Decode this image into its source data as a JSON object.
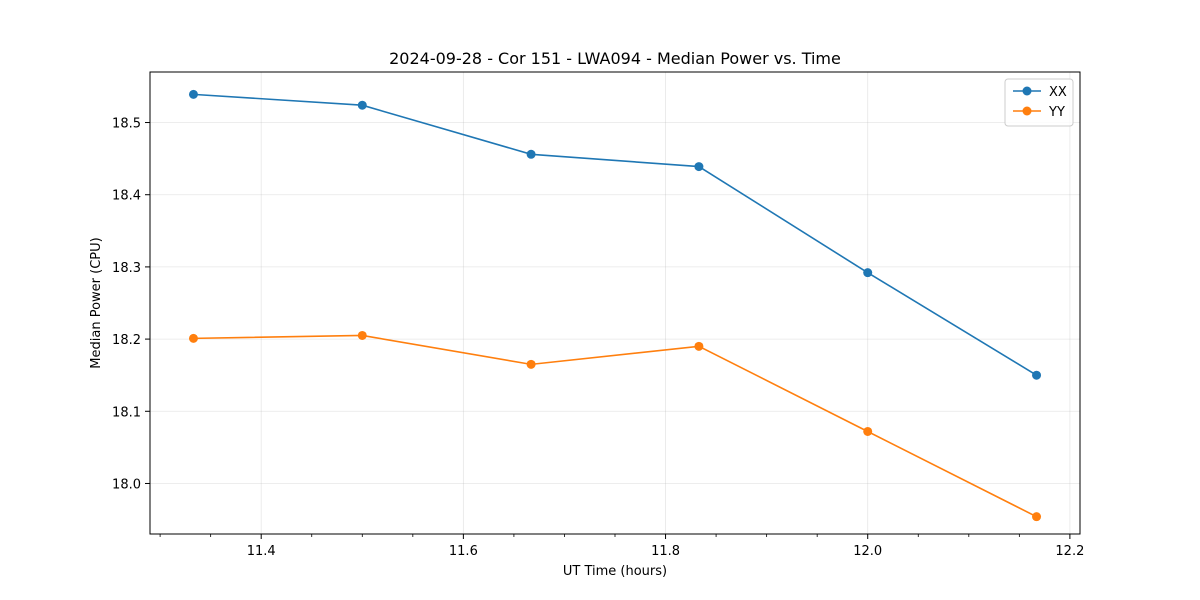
{
  "chart_data": {
    "type": "line",
    "title": "2024-09-28 - Cor 151 - LWA094 - Median Power vs. Time",
    "xlabel": "UT Time (hours)",
    "ylabel": "Median Power (CPU)",
    "xlim": [
      11.29,
      12.21
    ],
    "ylim": [
      17.93,
      18.57
    ],
    "xticks": [
      11.4,
      11.6,
      11.8,
      12.0,
      12.2
    ],
    "xtick_labels": [
      "11.4",
      "11.6",
      "11.8",
      "12.0",
      "12.2"
    ],
    "yticks": [
      18.0,
      18.1,
      18.2,
      18.3,
      18.4,
      18.5
    ],
    "ytick_labels": [
      "18.0",
      "18.1",
      "18.2",
      "18.3",
      "18.4",
      "18.5"
    ],
    "grid": true,
    "legend": "top-right",
    "x": [
      11.333,
      11.5,
      11.667,
      11.833,
      12.0,
      12.167
    ],
    "series": [
      {
        "name": "XX",
        "color": "#1f77b4",
        "values": [
          18.539,
          18.524,
          18.456,
          18.439,
          18.292,
          18.15
        ]
      },
      {
        "name": "YY",
        "color": "#ff7f0e",
        "values": [
          18.201,
          18.205,
          18.165,
          18.19,
          18.072,
          17.954
        ]
      }
    ]
  }
}
